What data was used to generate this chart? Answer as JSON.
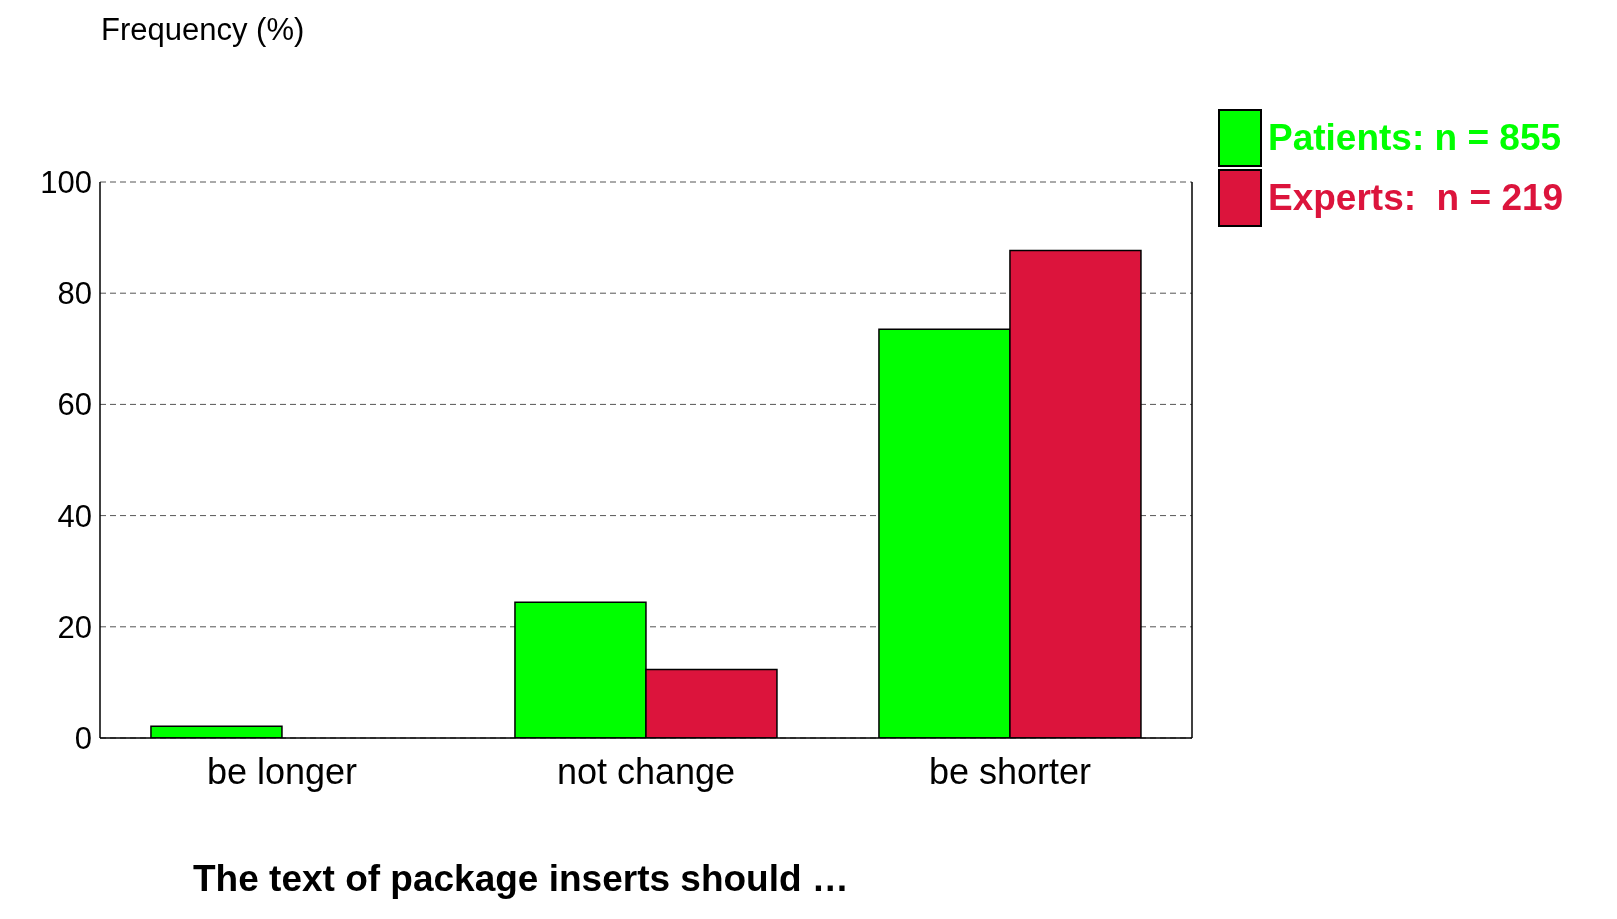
{
  "chart_data": {
    "type": "bar",
    "xlabel": "The text of package inserts should …",
    "ylabel": "Frequency (%)",
    "categories": [
      "be longer",
      "not change",
      "be shorter"
    ],
    "series": [
      {
        "name": "Patients: n = 855",
        "color": "#00ff00",
        "values": [
          2.1,
          24.4,
          73.5
        ]
      },
      {
        "name": "Experts:  n = 219",
        "color": "#dc143c",
        "values": [
          0,
          12.3,
          87.7
        ]
      }
    ],
    "ylim": [
      0,
      100
    ],
    "yticks": [
      0,
      20,
      40,
      60,
      80,
      100
    ],
    "grid": "y",
    "legend": "top right"
  }
}
